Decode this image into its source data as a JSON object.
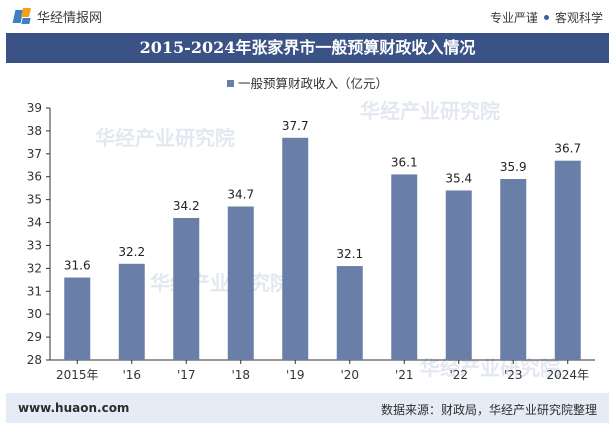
{
  "header": {
    "brand_name": "华经情报网",
    "tagline_left": "专业严谨",
    "tagline_right": "客观科学"
  },
  "colors": {
    "bar": "#6a7fa8",
    "title_bar": "#3a5285",
    "footer_bg": "#e6ecf5"
  },
  "watermark": "华经产业研究院",
  "chart_data": {
    "type": "bar",
    "title": "2015-2024年张家界市一般预算财政收入情况",
    "categories": [
      "2015年",
      "'16",
      "'17",
      "'18",
      "'19",
      "'20",
      "'21",
      "'22",
      "'23",
      "2024年"
    ],
    "series": [
      {
        "name": "一般预算财政收入（亿元）",
        "values": [
          31.6,
          32.2,
          34.2,
          34.7,
          37.7,
          32.1,
          36.1,
          35.4,
          35.9,
          36.7
        ]
      }
    ],
    "yticks": [
      28,
      29,
      30,
      31,
      32,
      33,
      34,
      35,
      36,
      37,
      38,
      39
    ],
    "ylim": [
      28,
      39
    ],
    "legend_position": "top",
    "grid": false,
    "data_labels": true
  },
  "footer": {
    "website": "www.huaon.com",
    "source": "数据来源：财政局，华经产业研究院整理"
  }
}
